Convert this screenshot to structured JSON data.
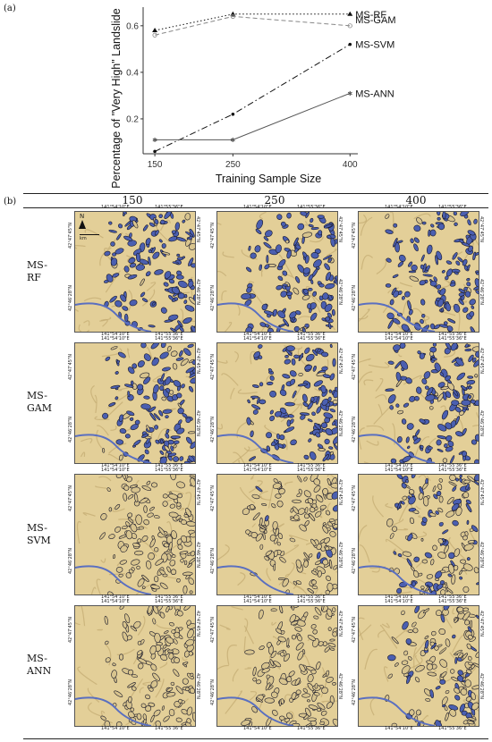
{
  "panel_a": {
    "label": "(a)",
    "chart_data": {
      "type": "line",
      "x": [
        150,
        250,
        400
      ],
      "xticks": [
        "150",
        "250",
        "400"
      ],
      "yticks": [
        "0.2",
        "0.4",
        "0.6"
      ],
      "xlabel": "Training Sample Size",
      "ylabel": "Percentage of \"Very High\" Landslide",
      "ylim": [
        0.05,
        0.68
      ],
      "grid": false,
      "legend": "series labels at right end of lines",
      "series": [
        {
          "name": "MS-RF",
          "values": [
            0.58,
            0.65,
            0.65
          ],
          "color": "#111111",
          "dash": "dotted",
          "marker": "triangle"
        },
        {
          "name": "MS-GAM",
          "values": [
            0.56,
            0.64,
            0.6
          ],
          "color": "#888888",
          "dash": "dashed",
          "marker": "circle-cross"
        },
        {
          "name": "MS-SVM",
          "values": [
            0.06,
            0.22,
            0.52
          ],
          "color": "#111111",
          "dash": "dashdot",
          "marker": "dot"
        },
        {
          "name": "MS-ANN",
          "values": [
            0.11,
            0.11,
            0.31
          ],
          "color": "#555555",
          "dash": "solid",
          "marker": "star"
        }
      ]
    }
  },
  "panel_b": {
    "label": "(b)",
    "columns": [
      "150",
      "250",
      "400"
    ],
    "rows": [
      {
        "label": "MS-\nRF"
      },
      {
        "label": "MS-\nGAM"
      },
      {
        "label": "MS-\nSVM"
      },
      {
        "label": "MS-\nANN"
      }
    ],
    "coords": {
      "lon_left": "141°54'10\"E",
      "lon_right": "141°55'36\"E",
      "lat_top": "42°47'45\"N",
      "lat_bottom": "42°46'28\"N"
    },
    "north_label": "N",
    "scale_label": "km",
    "intensity": [
      [
        0.9,
        0.95,
        0.95
      ],
      [
        0.85,
        0.95,
        0.9
      ],
      [
        0.0,
        0.05,
        0.5
      ],
      [
        0.0,
        0.0,
        0.3
      ]
    ]
  }
}
